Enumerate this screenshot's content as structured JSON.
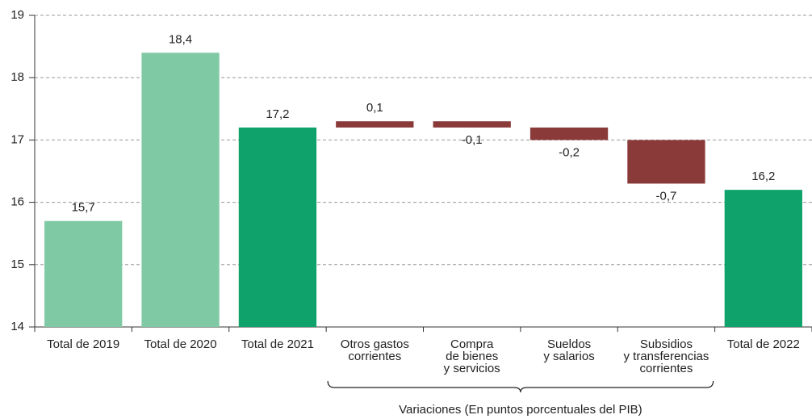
{
  "chart_data": {
    "type": "waterfall",
    "categories": [
      [
        "Total de 2019"
      ],
      [
        "Total de 2020"
      ],
      [
        "Total de 2021"
      ],
      [
        "Otros gastos",
        "corrientes"
      ],
      [
        "Compra",
        "de bienes",
        "y servicios"
      ],
      [
        "Sueldos",
        "y salarios"
      ],
      [
        "Subsidios",
        "y transferencias",
        "corrientes"
      ],
      [
        "Total de 2022"
      ]
    ],
    "values": [
      15.7,
      18.4,
      17.2,
      0.1,
      -0.1,
      -0.2,
      -0.7,
      16.2
    ],
    "value_labels": [
      "15,7",
      "18,4",
      "17,2",
      "0,1",
      "-0,1",
      "-0,2",
      "-0,7",
      "16,2"
    ],
    "measure": [
      "absolute",
      "absolute",
      "absolute",
      "relative",
      "relative",
      "relative",
      "relative",
      "absolute"
    ],
    "colors": [
      "#7fcaa5",
      "#7fcaa5",
      "#0fa36b",
      "#8b3a3a",
      "#8b3a3a",
      "#8b3a3a",
      "#8b3a3a",
      "#0fa36b"
    ],
    "ylim": [
      14,
      19
    ],
    "yticks": [
      14,
      15,
      16,
      17,
      18,
      19
    ],
    "grid": true,
    "annotations": [
      {
        "text": "Variaciones (En puntos porcentuales del PIB)",
        "from": 3,
        "to": 6
      }
    ]
  }
}
